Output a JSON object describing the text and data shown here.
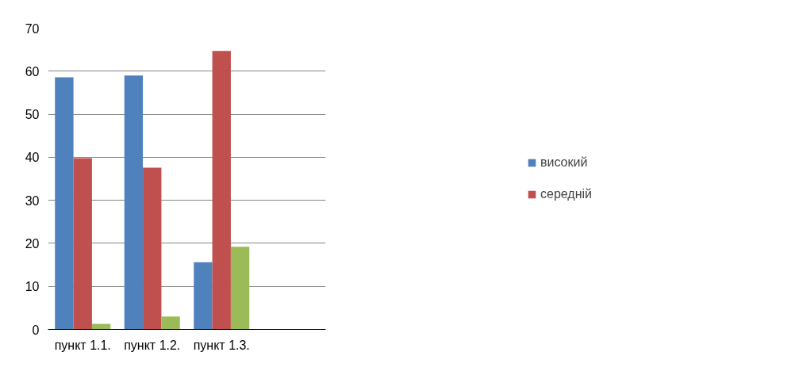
{
  "chart_data": {
    "type": "bar",
    "categories": [
      "пункт 1.1.",
      "пункт 1.2.",
      "пункт 1.3.",
      null
    ],
    "series": [
      {
        "name": "високий",
        "color": "#4f81bd",
        "values": [
          58.6,
          59,
          15.6,
          null
        ]
      },
      {
        "name": "середній",
        "color": "#c0504d",
        "values": [
          39.8,
          37.6,
          64.7,
          null
        ]
      },
      {
        "color": "#9bbb59",
        "values": [
          1.3,
          3,
          19.2,
          null
        ]
      }
    ],
    "ylim": [
      0,
      70
    ],
    "yticks": [
      0,
      10,
      20,
      30,
      40,
      50,
      60,
      70
    ],
    "grid": "y",
    "legend": "right"
  }
}
